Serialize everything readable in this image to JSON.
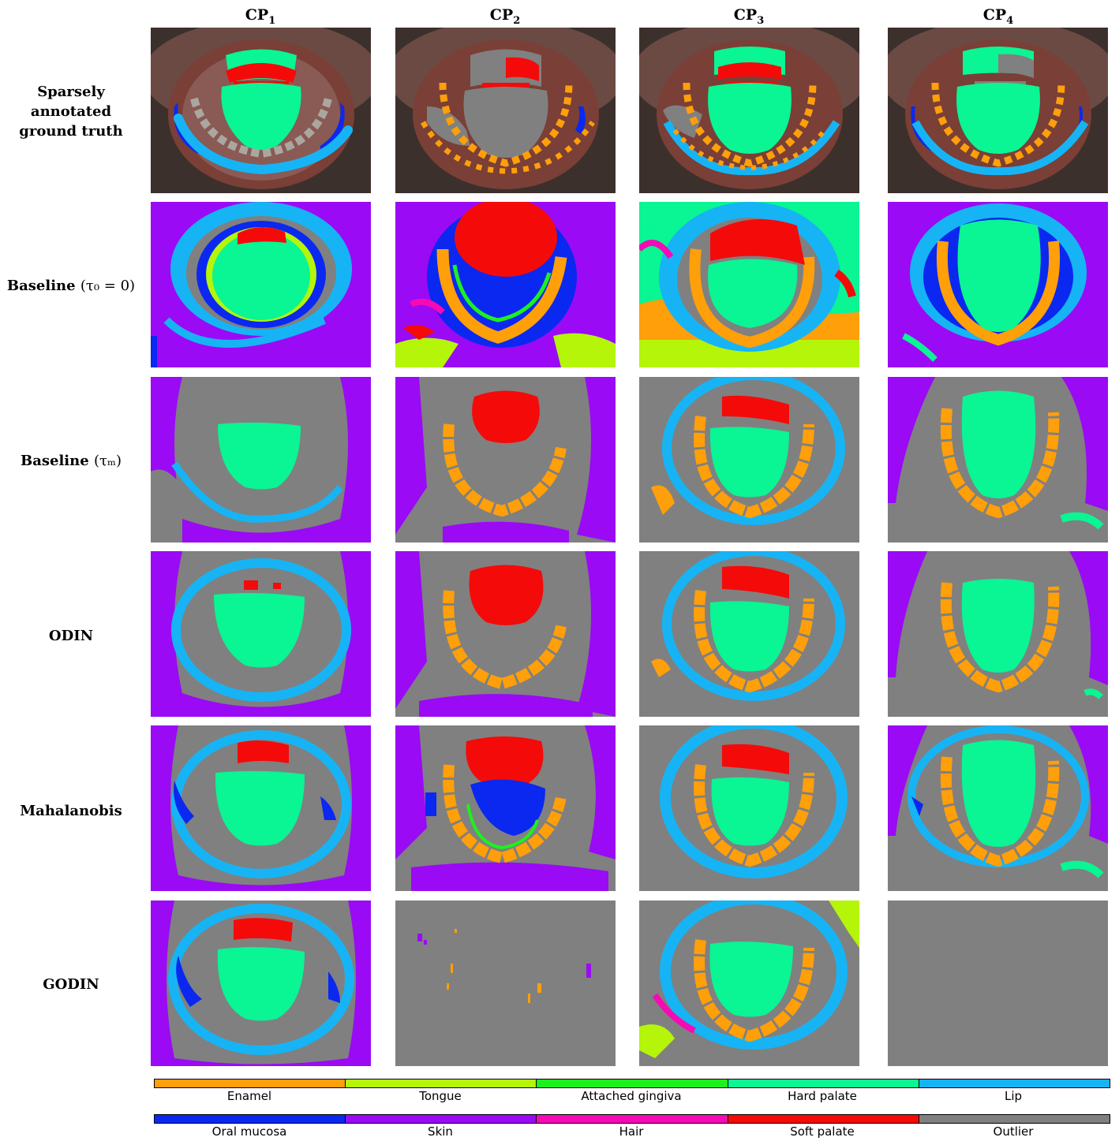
{
  "columns": [
    {
      "main": "CP",
      "sub": "1"
    },
    {
      "main": "CP",
      "sub": "2"
    },
    {
      "main": "CP",
      "sub": "3"
    },
    {
      "main": "CP",
      "sub": "4"
    }
  ],
  "rows": [
    {
      "lines": [
        "Sparsely",
        "annotated",
        "ground truth"
      ]
    },
    {
      "text": "Baseline",
      "math": "(τ₀ = 0)"
    },
    {
      "text": "Baseline",
      "math": "(τₘ)"
    },
    {
      "text": "ODIN"
    },
    {
      "text": "Mahalanobis"
    },
    {
      "text": "GODIN"
    }
  ],
  "legend": {
    "row1": [
      {
        "label": "Enamel",
        "color": "#ff9f0a"
      },
      {
        "label": "Tongue",
        "color": "#b4f50a"
      },
      {
        "label": "Attached gingiva",
        "color": "#1ef01e"
      },
      {
        "label": "Hard palate",
        "color": "#0af593"
      },
      {
        "label": "Lip",
        "color": "#16b4f5"
      }
    ],
    "row2": [
      {
        "label": "Oral mucosa",
        "color": "#0a28f0"
      },
      {
        "label": "Skin",
        "color": "#9a0af5"
      },
      {
        "label": "Hair",
        "color": "#f50ab4"
      },
      {
        "label": "Soft palate",
        "color": "#f50a0a"
      },
      {
        "label": "Outlier",
        "color": "#808080"
      }
    ]
  }
}
